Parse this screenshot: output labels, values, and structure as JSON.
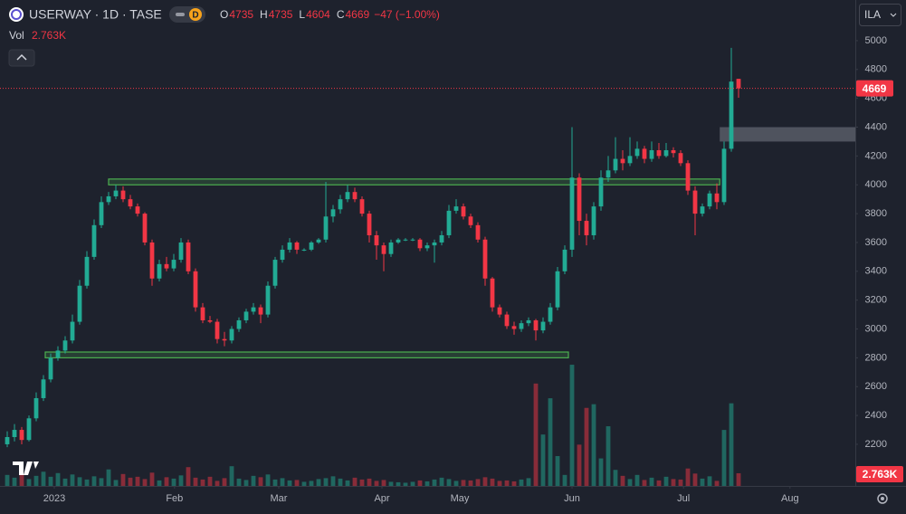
{
  "chart_data": {
    "type": "candlestick",
    "title": "USERWAY · 1D · TASE",
    "interval_badge": "D",
    "ohlc_letters": [
      "O",
      "H",
      "L",
      "C"
    ],
    "change_label": "−47 (−1.00%)",
    "volume_title": "Vol",
    "volume_last_label": "2.763K",
    "currency": "ILA",
    "up_color": "#22ab94",
    "down_color": "#f23645",
    "grid": false,
    "ylim": [
      1911,
      5282
    ],
    "yticks": [
      2200,
      2400,
      2600,
      2800,
      3000,
      3200,
      3400,
      3600,
      3800,
      4000,
      4200,
      4400,
      4600,
      4800,
      5000
    ],
    "xlim": [
      -1,
      117.125
    ],
    "xticks": [
      {
        "value": 6.5,
        "label": "2023"
      },
      {
        "value": 23.1,
        "label": "Feb"
      },
      {
        "value": 37.5,
        "label": "Mar"
      },
      {
        "value": 51.75,
        "label": "Apr"
      },
      {
        "value": 62.5,
        "label": "May"
      },
      {
        "value": 78,
        "label": "Jun"
      },
      {
        "value": 93.4,
        "label": "Jul"
      },
      {
        "value": 108.1,
        "label": "Aug"
      }
    ],
    "volume_ylim": [
      0,
      27000
    ],
    "candles": [
      [
        2200,
        2290,
        2180,
        2250
      ],
      [
        2250,
        2340,
        2220,
        2300
      ],
      [
        2300,
        2320,
        2200,
        2230
      ],
      [
        2230,
        2400,
        2220,
        2380
      ],
      [
        2380,
        2560,
        2360,
        2520
      ],
      [
        2520,
        2680,
        2500,
        2650
      ],
      [
        2650,
        2830,
        2630,
        2800
      ],
      [
        2800,
        2880,
        2780,
        2850
      ],
      [
        2850,
        2950,
        2830,
        2920
      ],
      [
        2920,
        3100,
        2900,
        3050
      ],
      [
        3050,
        3340,
        3030,
        3300
      ],
      [
        3300,
        3540,
        3280,
        3500
      ],
      [
        3500,
        3760,
        3480,
        3720
      ],
      [
        3720,
        3920,
        3700,
        3880
      ],
      [
        3880,
        3950,
        3860,
        3920
      ],
      [
        3920,
        4000,
        3900,
        3960
      ],
      [
        3960,
        3990,
        3880,
        3900
      ],
      [
        3900,
        3930,
        3830,
        3850
      ],
      [
        3850,
        3870,
        3780,
        3800
      ],
      [
        3800,
        3810,
        3580,
        3600
      ],
      [
        3600,
        3620,
        3300,
        3350
      ],
      [
        3350,
        3480,
        3330,
        3450
      ],
      [
        3450,
        3500,
        3400,
        3420
      ],
      [
        3420,
        3520,
        3400,
        3480
      ],
      [
        3480,
        3630,
        3460,
        3600
      ],
      [
        3600,
        3620,
        3380,
        3400
      ],
      [
        3400,
        3420,
        3120,
        3150
      ],
      [
        3150,
        3180,
        3040,
        3060
      ],
      [
        3060,
        3090,
        3040,
        3050
      ],
      [
        3050,
        3070,
        2900,
        2930
      ],
      [
        2930,
        2980,
        2880,
        2920
      ],
      [
        2920,
        3020,
        2900,
        3000
      ],
      [
        3000,
        3080,
        2980,
        3060
      ],
      [
        3060,
        3140,
        3040,
        3120
      ],
      [
        3120,
        3180,
        3100,
        3150
      ],
      [
        3150,
        3170,
        3040,
        3100
      ],
      [
        3100,
        3330,
        3080,
        3300
      ],
      [
        3300,
        3500,
        3280,
        3480
      ],
      [
        3480,
        3580,
        3460,
        3550
      ],
      [
        3550,
        3630,
        3530,
        3600
      ],
      [
        3600,
        3610,
        3520,
        3550
      ],
      [
        3550,
        3560,
        3540,
        3550
      ],
      [
        3550,
        3610,
        3540,
        3600
      ],
      [
        3600,
        3630,
        3590,
        3620
      ],
      [
        3620,
        4020,
        3600,
        3780
      ],
      [
        3780,
        3860,
        3740,
        3830
      ],
      [
        3830,
        3930,
        3800,
        3900
      ],
      [
        3900,
        4000,
        3880,
        3950
      ],
      [
        3950,
        3980,
        3880,
        3900
      ],
      [
        3900,
        3920,
        3780,
        3800
      ],
      [
        3800,
        3820,
        3600,
        3650
      ],
      [
        3650,
        3680,
        3480,
        3580
      ],
      [
        3580,
        3600,
        3400,
        3520
      ],
      [
        3520,
        3620,
        3500,
        3600
      ],
      [
        3600,
        3630,
        3590,
        3620
      ],
      [
        3620,
        3630,
        3610,
        3620
      ],
      [
        3620,
        3630,
        3610,
        3620
      ],
      [
        3620,
        3630,
        3540,
        3560
      ],
      [
        3560,
        3600,
        3540,
        3580
      ],
      [
        3580,
        3620,
        3460,
        3600
      ],
      [
        3600,
        3680,
        3580,
        3650
      ],
      [
        3650,
        3860,
        3630,
        3820
      ],
      [
        3820,
        3900,
        3800,
        3850
      ],
      [
        3850,
        3870,
        3760,
        3780
      ],
      [
        3780,
        3800,
        3700,
        3720
      ],
      [
        3720,
        3740,
        3600,
        3620
      ],
      [
        3620,
        3640,
        3300,
        3350
      ],
      [
        3350,
        3360,
        3120,
        3150
      ],
      [
        3150,
        3170,
        3080,
        3100
      ],
      [
        3100,
        3120,
        3000,
        3020
      ],
      [
        3020,
        3050,
        2960,
        3000
      ],
      [
        3000,
        3060,
        2980,
        3040
      ],
      [
        3040,
        3080,
        3020,
        3060
      ],
      [
        3060,
        3070,
        2920,
        2990
      ],
      [
        2990,
        3080,
        2970,
        3050
      ],
      [
        3050,
        3180,
        3030,
        3150
      ],
      [
        3150,
        3430,
        3130,
        3400
      ],
      [
        3400,
        3580,
        3380,
        3550
      ],
      [
        3550,
        4400,
        3500,
        4050
      ],
      [
        4050,
        4080,
        3650,
        3750
      ],
      [
        3750,
        3800,
        3580,
        3650
      ],
      [
        3650,
        3880,
        3620,
        3850
      ],
      [
        3850,
        4100,
        3820,
        4050
      ],
      [
        4050,
        4200,
        4020,
        4100
      ],
      [
        4100,
        4330,
        4080,
        4180
      ],
      [
        4180,
        4240,
        4100,
        4150
      ],
      [
        4150,
        4330,
        4130,
        4200
      ],
      [
        4200,
        4300,
        4180,
        4250
      ],
      [
        4250,
        4270,
        4150,
        4180
      ],
      [
        4180,
        4300,
        4160,
        4240
      ],
      [
        4240,
        4290,
        4180,
        4200
      ],
      [
        4200,
        4290,
        4190,
        4240
      ],
      [
        4240,
        4260,
        4190,
        4220
      ],
      [
        4220,
        4240,
        4130,
        4150
      ],
      [
        4150,
        4170,
        3930,
        3960
      ],
      [
        3960,
        3990,
        3650,
        3800
      ],
      [
        3800,
        3870,
        3780,
        3850
      ],
      [
        3850,
        3960,
        3830,
        3940
      ],
      [
        3940,
        4010,
        3830,
        3880
      ],
      [
        3880,
        4300,
        3860,
        4250
      ],
      [
        4250,
        4950,
        4230,
        4716
      ],
      [
        4735,
        4735,
        4604,
        4669
      ]
    ],
    "volumes": [
      2400,
      1800,
      2600,
      1500,
      2200,
      3100,
      2000,
      2800,
      1600,
      2500,
      1900,
      1400,
      2100,
      1700,
      3600,
      1300,
      2600,
      1800,
      2000,
      1500,
      2900,
      1200,
      1900,
      1600,
      2300,
      4100,
      1800,
      1400,
      2000,
      1100,
      1700,
      4300,
      1600,
      1300,
      2200,
      1900,
      2500,
      1400,
      1700,
      1200,
      1300,
      900,
      1100,
      1500,
      1700,
      2100,
      1600,
      1200,
      1800,
      1400,
      1600,
      1100,
      1300,
      900,
      800,
      700,
      900,
      1200,
      1000,
      1400,
      1800,
      1500,
      1100,
      1300,
      1200,
      1500,
      1900,
      1600,
      1100,
      1200,
      1000,
      1400,
      1700,
      22300,
      11200,
      19100,
      6500,
      2400,
      26400,
      9000,
      17000,
      17800,
      6000,
      13000,
      3500,
      2200,
      1500,
      2400,
      1300,
      1800,
      1200,
      2000,
      1500,
      1400,
      3800,
      2700,
      1600,
      2100,
      1100,
      12200,
      18000,
      2763
    ],
    "zones": [
      {
        "x": [
          5.25,
          77.5
        ],
        "y": [
          2800,
          2840
        ],
        "color": "#4caf50"
      },
      {
        "x": [
          14,
          98.4
        ],
        "y": [
          4000,
          4040
        ],
        "color": "#4caf50"
      },
      {
        "x": [
          98.4,
          117.125
        ],
        "y": [
          4300,
          4400
        ],
        "color": "#787b86"
      }
    ]
  }
}
